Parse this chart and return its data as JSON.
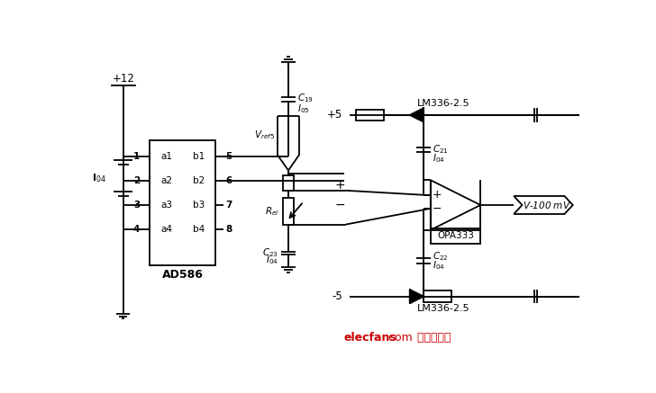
{
  "bg": "#ffffff",
  "lc": "#000000",
  "lw": 1.3,
  "fw": [
    7.28,
    4.37
  ],
  "dpi": 100,
  "wm": "elecfans.com 电子发烧友",
  "wmc": "#cc0000",
  "label_plus12": "+12",
  "label_plus5": "+5",
  "label_minus5": "-5",
  "label_ic": "AD586",
  "label_opamp": "OPA333",
  "label_lm_top": "LM336-2.5",
  "label_lm_bot": "LM336-2.5",
  "label_vref": "$V_{ref5}$",
  "label_rel": "$R_{el}$",
  "label_c19": "$C_{19}$",
  "label_c21": "$C_{21}$",
  "label_c22": "$C_{22}$",
  "label_c23": "$C_{23}$",
  "label_i05": "$I_{05}$",
  "label_i04": "$I_{04}$",
  "label_output": "$V$-100 mV"
}
